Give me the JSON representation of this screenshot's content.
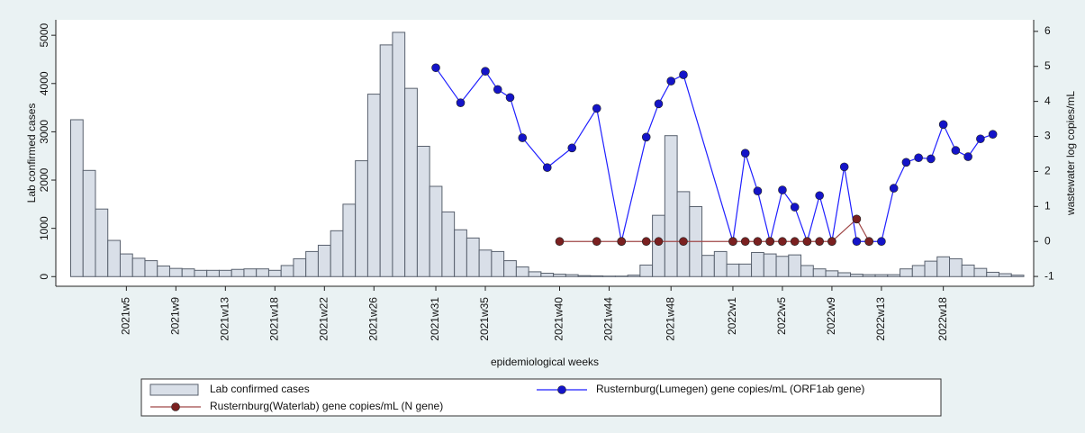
{
  "chart_data": {
    "type": "bar",
    "xlabel": "epidemiological weeks",
    "ylabel": "Lab confirmed cases",
    "y2label": "wastewater log copies/mL",
    "xlim": [
      -1.7,
      77.3
    ],
    "xticks": [
      {
        "value": 4,
        "label": "2021w5"
      },
      {
        "value": 8,
        "label": "2021w9"
      },
      {
        "value": 12,
        "label": "2021w13"
      },
      {
        "value": 16,
        "label": "2021w18"
      },
      {
        "value": 20,
        "label": "2021w22"
      },
      {
        "value": 24,
        "label": "2021w26"
      },
      {
        "value": 29,
        "label": "2021w31"
      },
      {
        "value": 33,
        "label": "2021w35"
      },
      {
        "value": 39,
        "label": "2021w40"
      },
      {
        "value": 43,
        "label": "2021w44"
      },
      {
        "value": 48,
        "label": "2021w48"
      },
      {
        "value": 53,
        "label": "2022w1"
      },
      {
        "value": 57,
        "label": "2022w5"
      },
      {
        "value": 61,
        "label": "2022w9"
      },
      {
        "value": 65,
        "label": "2022w13"
      },
      {
        "value": 70,
        "label": "2022w18"
      }
    ],
    "ylim": [
      -200,
      5320
    ],
    "yticks": [
      0,
      1000,
      2000,
      3000,
      4000,
      5000
    ],
    "y2lim": [
      -1.28,
      6.33
    ],
    "y2ticks": [
      -1,
      0,
      1,
      2,
      3,
      4,
      5,
      6
    ],
    "grid": false,
    "legend": "bottom",
    "series": [
      {
        "name": "Lab confirmed cases",
        "type": "bar",
        "color": "#d9dfe8",
        "x": [
          0,
          1,
          2,
          3,
          4,
          5,
          6,
          7,
          8,
          9,
          10,
          11,
          12,
          13,
          14,
          15,
          16,
          17,
          18,
          19,
          20,
          21,
          22,
          23,
          24,
          25,
          26,
          27,
          28,
          29,
          30,
          31,
          32,
          33,
          34,
          35,
          36,
          37,
          38,
          39,
          40,
          41,
          42,
          43,
          44,
          45,
          46,
          47,
          48,
          49,
          50,
          51,
          52,
          53,
          54,
          55,
          56,
          57,
          58,
          59,
          60,
          61,
          62,
          63,
          64,
          65,
          66,
          67,
          68,
          69,
          70,
          71,
          72,
          73,
          74,
          75,
          76
        ],
        "values": [
          3250,
          2200,
          1400,
          750,
          470,
          380,
          330,
          220,
          170,
          160,
          130,
          130,
          130,
          150,
          160,
          160,
          130,
          230,
          370,
          520,
          650,
          950,
          1500,
          2400,
          3780,
          4800,
          5060,
          3900,
          2700,
          1870,
          1340,
          970,
          800,
          550,
          520,
          330,
          200,
          100,
          70,
          50,
          40,
          20,
          15,
          10,
          10,
          30,
          240,
          1270,
          2920,
          1760,
          1450,
          440,
          520,
          260,
          260,
          500,
          470,
          420,
          450,
          230,
          160,
          120,
          80,
          50,
          40,
          40,
          40,
          160,
          230,
          320,
          410,
          370,
          240,
          170,
          90,
          60,
          30
        ]
      },
      {
        "name": "Rusternburg(Lumegen) gene copies/mL (ORF1ab gene)",
        "type": "line",
        "axis": "y2",
        "color": "#1f1fff",
        "marker_color": "#1414c8",
        "x": [
          29,
          31,
          33,
          34,
          35,
          36,
          38,
          40,
          42,
          44,
          46,
          47,
          48,
          49,
          53,
          54,
          55,
          56,
          57,
          58,
          59,
          60,
          61,
          62,
          63,
          64,
          65,
          66,
          67,
          68,
          69,
          70,
          71,
          72,
          73,
          74
        ],
        "values": [
          4.96,
          3.96,
          4.86,
          4.34,
          4.11,
          2.96,
          2.11,
          2.67,
          3.8,
          0,
          2.98,
          3.93,
          4.58,
          4.76,
          0,
          2.52,
          1.44,
          0,
          1.47,
          0.98,
          0,
          1.31,
          0,
          2.13,
          0,
          0,
          0,
          1.52,
          2.26,
          2.39,
          2.36,
          3.34,
          2.6,
          2.42,
          2.93,
          3.06
        ]
      },
      {
        "name": "Rusternburg(Waterlab) gene copies/mL (N gene)",
        "type": "line",
        "axis": "y2",
        "color": "#a04848",
        "marker_color": "#7a2020",
        "x": [
          39,
          42,
          44,
          46,
          47,
          49,
          53,
          54,
          55,
          56,
          57,
          58,
          59,
          60,
          61,
          63,
          64
        ],
        "values": [
          0,
          0,
          0,
          0,
          0,
          0,
          0,
          0,
          0,
          0,
          0,
          0,
          0,
          0,
          0,
          0.64,
          0
        ]
      }
    ]
  }
}
